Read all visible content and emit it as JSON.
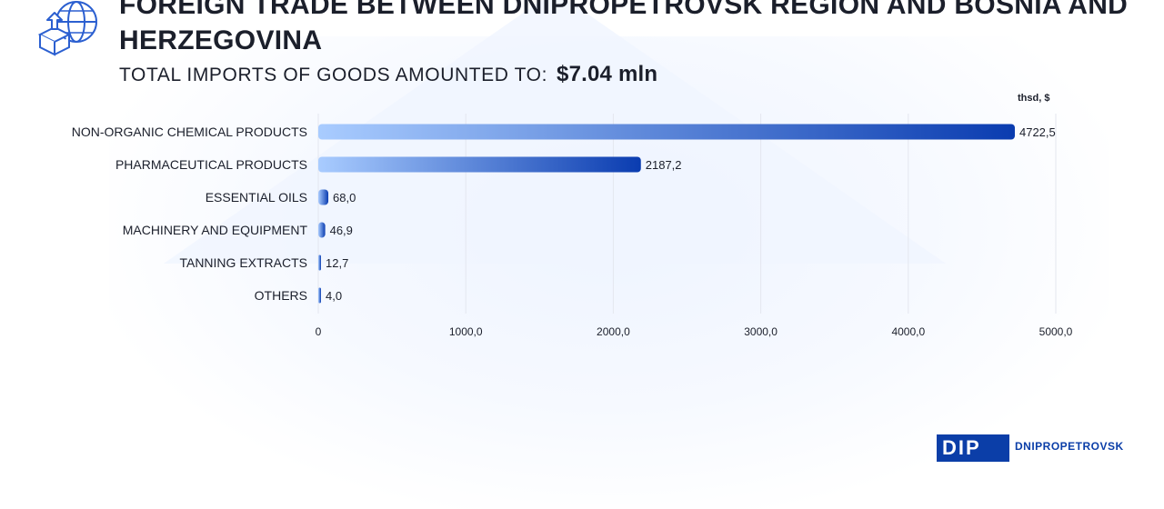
{
  "header": {
    "title": "FOREIGN TRADE BETWEEN DNIPROPETROVSK REGION AND BOSNIA AND HERZEGOVINA",
    "subtitle_label": "TOTAL IMPORTS OF GOODS AMOUNTED TO:",
    "subtitle_value": "$7.04  mln"
  },
  "icons": {
    "header": "globe-box-upload-icon"
  },
  "brand": {
    "mark": "DIP",
    "text": "DNIPROPETROVSK"
  },
  "colors": {
    "bar_start": "#a9ccff",
    "bar_end": "#0a3cb0",
    "text": "#1b1f2b",
    "grid": "#e4e7ef",
    "brand": "#0b3ea8"
  },
  "chart_data": {
    "type": "bar",
    "orientation": "horizontal",
    "unit_label": "thsd, $",
    "categories": [
      "NON-ORGANIC CHEMICAL PRODUCTS",
      "PHARMACEUTICAL PRODUCTS",
      "ESSENTIAL OILS",
      "MACHINERY AND EQUIPMENT",
      "TANNING EXTRACTS",
      "OTHERS"
    ],
    "values": [
      4722.5,
      2187.2,
      68.0,
      46.9,
      12.7,
      4.0
    ],
    "value_labels": [
      "4722,5",
      "2187,2",
      "68,0",
      "46,9",
      "12,7",
      "4,0"
    ],
    "xlim": [
      0,
      5000
    ],
    "x_ticks": [
      0,
      1000,
      2000,
      3000,
      4000,
      5000
    ],
    "x_tick_labels": [
      "0",
      "1000,0",
      "2000,0",
      "3000,0",
      "4000,0",
      "5000,0"
    ],
    "grid": true,
    "legend": "none"
  }
}
